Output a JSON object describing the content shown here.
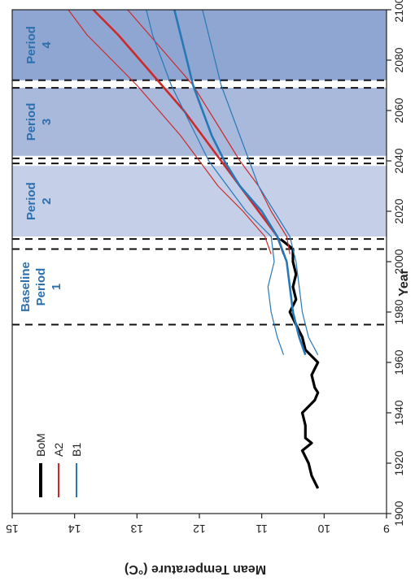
{
  "chart_data": {
    "type": "line",
    "orientation": "rotated 90 degrees counter-clockwise",
    "xlabel": "Year",
    "ylabel": "Mean Temperature (°C)",
    "xlim": [
      1900,
      2100
    ],
    "ylim": [
      9,
      15
    ],
    "x_ticks": [
      "1900",
      "1920",
      "1940",
      "1960",
      "1980",
      "2000",
      "2020",
      "2040",
      "2060",
      "2080",
      "2100"
    ],
    "y_ticks": [
      "9",
      "10",
      "11",
      "12",
      "13",
      "14",
      "15"
    ],
    "legend": {
      "position": "bottom-left",
      "entries": [
        "BoM",
        "A2",
        "B1"
      ]
    },
    "colors": {
      "BoM": "#000000",
      "A2": "#cc2a2a",
      "B1": "#2878b8"
    },
    "periods": [
      {
        "lines": [
          "Baseline",
          "Period",
          "1"
        ],
        "start": 1975,
        "end": 2005,
        "shaded": false
      },
      {
        "lines": [
          "Period",
          "2"
        ],
        "start": 2010,
        "end": 2038,
        "shade": "#c5d0e8",
        "shaded": true
      },
      {
        "lines": [
          "Period",
          "3"
        ],
        "start": 2042,
        "end": 2069,
        "shade": "#a9b9dc",
        "shaded": true
      },
      {
        "lines": [
          "Period",
          "4"
        ],
        "start": 2072,
        "end": 2100,
        "shade": "#8fa6d2",
        "shaded": true
      }
    ],
    "dashed_lines": [
      1975,
      2005,
      2009,
      2039,
      2041,
      2069,
      2072
    ],
    "series": [
      {
        "name": "BoM",
        "x": [
          1910,
          1915,
          1920,
          1925,
          1928,
          1930,
          1935,
          1940,
          1945,
          1948,
          1950,
          1955,
          1960,
          1965,
          1970,
          1975,
          1980,
          1985,
          1990,
          1995,
          2000,
          2005,
          2009
        ],
        "y": [
          10.1,
          10.2,
          10.25,
          10.35,
          10.2,
          10.3,
          10.3,
          10.35,
          10.15,
          10.1,
          10.15,
          10.2,
          10.1,
          10.3,
          10.35,
          10.45,
          10.55,
          10.45,
          10.5,
          10.45,
          10.5,
          10.5,
          10.7
        ]
      },
      {
        "name": "A2 upper",
        "x": [
          2003,
          2010,
          2020,
          2030,
          2040,
          2050,
          2060,
          2070,
          2080,
          2090,
          2100
        ],
        "y": [
          10.85,
          10.95,
          11.3,
          11.7,
          12.0,
          12.3,
          12.65,
          13.0,
          13.4,
          13.8,
          14.1
        ]
      },
      {
        "name": "A2",
        "x": [
          2003,
          2010,
          2020,
          2030,
          2040,
          2050,
          2060,
          2070,
          2080,
          2090,
          2100
        ],
        "y": [
          10.65,
          10.75,
          11.05,
          11.35,
          11.65,
          11.95,
          12.25,
          12.6,
          12.95,
          13.3,
          13.7
        ]
      },
      {
        "name": "A2 lower",
        "x": [
          2003,
          2010,
          2020,
          2030,
          2040,
          2050,
          2060,
          2070,
          2080,
          2090,
          2100
        ],
        "y": [
          10.55,
          10.6,
          10.85,
          11.05,
          11.35,
          11.6,
          11.85,
          12.1,
          12.45,
          12.8,
          13.15
        ]
      },
      {
        "name": "B1 upper",
        "x": [
          1963,
          1970,
          1980,
          1990,
          2000,
          2010,
          2020,
          2030,
          2040,
          2050,
          2060,
          2070,
          2080,
          2090,
          2100
        ],
        "y": [
          10.65,
          10.75,
          10.85,
          10.9,
          10.8,
          10.85,
          11.25,
          11.55,
          11.85,
          12.05,
          12.25,
          12.45,
          12.6,
          12.75,
          12.85
        ]
      },
      {
        "name": "B1",
        "x": [
          1963,
          1970,
          1980,
          1990,
          2000,
          2010,
          2020,
          2030,
          2040,
          2050,
          2060,
          2070,
          2080,
          2090,
          2100
        ],
        "y": [
          10.3,
          10.4,
          10.5,
          10.55,
          10.6,
          10.75,
          11.0,
          11.35,
          11.6,
          11.8,
          11.95,
          12.1,
          12.2,
          12.3,
          12.4
        ]
      },
      {
        "name": "B1 lower",
        "x": [
          1963,
          1970,
          1980,
          1990,
          2000,
          2010,
          2020,
          2030,
          2040,
          2050,
          2060,
          2070,
          2080,
          2090,
          2100
        ],
        "y": [
          10.1,
          10.25,
          10.35,
          10.4,
          10.45,
          10.55,
          10.8,
          11.05,
          11.2,
          11.35,
          11.5,
          11.65,
          11.75,
          11.85,
          11.95
        ]
      }
    ]
  }
}
